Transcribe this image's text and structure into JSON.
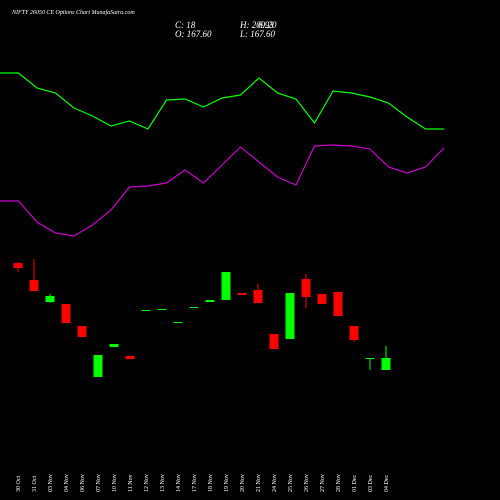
{
  "header": {
    "title": "NIFTY 26050 CE Options Chart MunafaSutra.com",
    "close": "C: 18",
    "high": "H: 209.20",
    "open": "O: 167.60",
    "low": "L: 167.60",
    "change": "6.93"
  },
  "chart_data": [
    {
      "type": "line",
      "ylim": [
        0,
        250
      ],
      "series": [
        {
          "color": "#00ff00",
          "values": [
            177,
            177,
            162,
            157,
            142,
            134,
            124,
            129,
            121,
            150,
            151,
            143,
            152,
            155,
            172,
            157,
            151,
            127,
            159,
            157,
            153,
            147,
            133,
            121,
            121
          ]
        },
        {
          "color": "#cc00cc",
          "values": [
            49,
            49,
            28,
            17,
            14,
            25,
            40,
            63,
            64,
            67,
            80,
            67,
            85,
            103,
            88,
            73,
            65,
            104,
            105,
            104,
            101,
            83,
            77,
            83,
            102
          ]
        }
      ]
    },
    {
      "type": "candlestick",
      "ylim": [
        0,
        140
      ],
      "up_color": "#00ff00",
      "down_color": "#ff0000",
      "categories": [
        "30 Oct",
        "31 Oct",
        "03 Nov",
        "04 Nov",
        "06 Nov",
        "07 Nov",
        "10 Nov",
        "11 Nov",
        "12 Nov",
        "13 Nov",
        "14 Nov",
        "17 Nov",
        "18 Nov",
        "19 Nov",
        "20 Nov",
        "21 Nov",
        "24 Nov",
        "25 Nov",
        "26 Nov",
        "27 Nov",
        "28 Nov",
        "01 Dec",
        "03 Dec",
        "04 Dec"
      ],
      "open": [
        127,
        110,
        88,
        86,
        64,
        13,
        43,
        34,
        79,
        80,
        67,
        82,
        88,
        90,
        97,
        100,
        56,
        51,
        111,
        96,
        98,
        64,
        31,
        20
      ],
      "high": [
        128,
        131,
        96,
        86,
        64,
        35,
        46,
        34,
        80,
        81,
        68,
        83,
        90,
        118,
        97,
        106,
        56,
        97,
        116,
        96,
        98,
        64,
        32,
        44
      ],
      "low": [
        118,
        99,
        87,
        67,
        53,
        13,
        43,
        31,
        79,
        80,
        67,
        82,
        88,
        90,
        95,
        87,
        41,
        51,
        82,
        86,
        74,
        48,
        20,
        20
      ],
      "close": [
        122,
        99,
        94,
        67,
        53,
        35,
        46,
        31,
        80,
        81,
        68,
        83,
        90,
        118,
        95,
        87,
        41,
        97,
        93,
        86,
        74,
        50,
        32,
        32
      ]
    }
  ]
}
